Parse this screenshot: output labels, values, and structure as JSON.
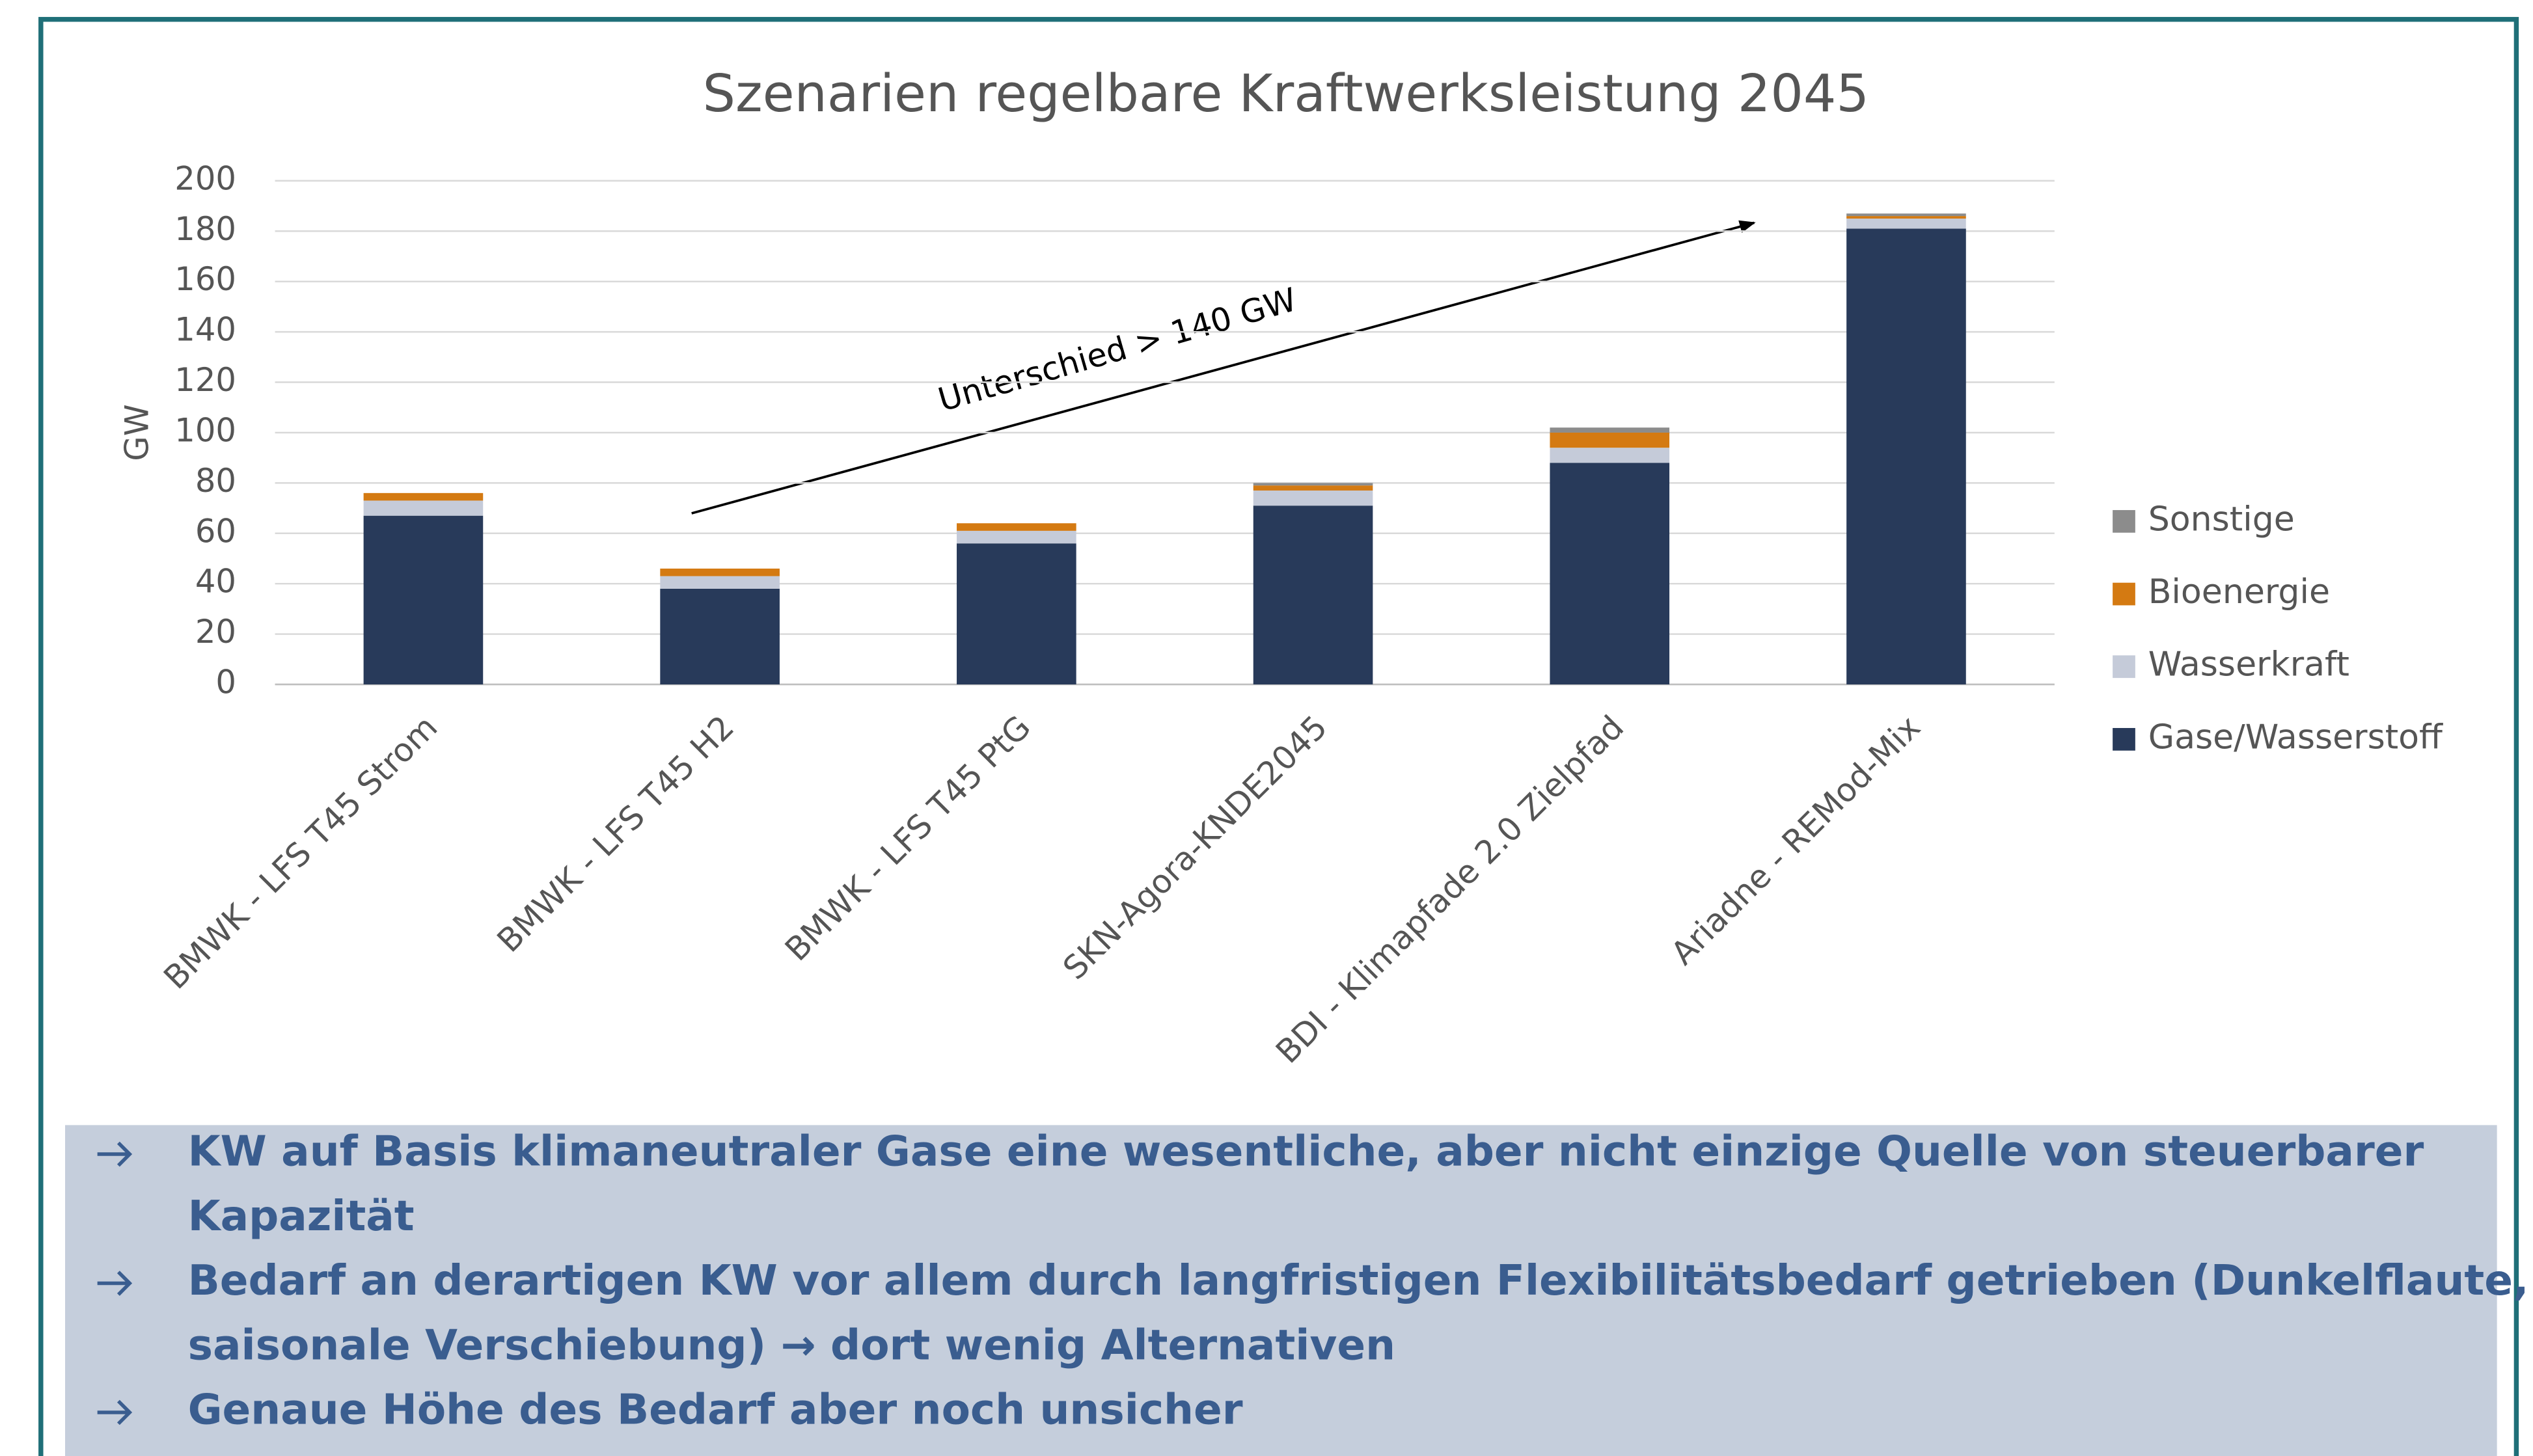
{
  "chart_data": {
    "type": "stacked_bar",
    "title": "Szenarien regelbare Kraftwerksleistung 2045",
    "ylabel": "GW",
    "categories": [
      "BMWK - LFS T45 Strom",
      "BMWK - LFS T45 H2",
      "BMWK - LFS T45 PtG",
      "SKN-Agora-KNDE2045",
      "BDI - Klimapfade 2.0 Zielpfad",
      "Ariadne - REMod-Mix"
    ],
    "series": [
      {
        "name": "Gase/Wasserstoff",
        "color": "#283a5a",
        "values": [
          67,
          38,
          56,
          71,
          88,
          181
        ]
      },
      {
        "name": "Wasserkraft",
        "color": "#c5cbd9",
        "values": [
          6,
          5,
          5,
          6,
          6,
          4
        ]
      },
      {
        "name": "Bioenergie",
        "color": "#d47a12",
        "values": [
          3,
          3,
          3,
          2,
          6,
          1
        ]
      },
      {
        "name": "Sonstige",
        "color": "#8c8c8c",
        "values": [
          0,
          0,
          0,
          1,
          2,
          1
        ]
      }
    ],
    "ylim": [
      0,
      200
    ],
    "yticks": [
      0,
      20,
      40,
      60,
      80,
      100,
      120,
      140,
      160,
      180,
      200
    ],
    "grid": true,
    "legend": "right",
    "annotation": "Unterschied > 140 GW"
  },
  "bullets": [
    [
      "KW auf Basis klimaneutraler Gase eine wesentliche, aber nicht einzige Quelle von steuerbarer",
      "Kapazität"
    ],
    [
      "Bedarf an derartigen KW vor allem durch langfristigen Flexibilitätsbedarf getrieben (Dunkelflaute,",
      "saisonale Verschiebung) → dort wenig Alternativen"
    ],
    [
      "Genaue Höhe des Bedarf aber noch unsicher"
    ]
  ]
}
